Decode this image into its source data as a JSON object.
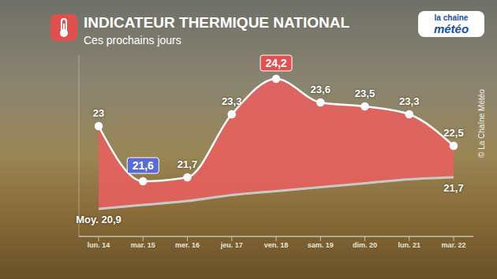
{
  "chart_data": {
    "type": "area",
    "title": "INDICATEUR THERMIQUE NATIONAL",
    "subtitle": "Ces prochains jours",
    "logo": [
      "la chaîne",
      "météo"
    ],
    "source": "© La Chaîne Météo",
    "categories": [
      "lun. 14",
      "mar. 15",
      "mer. 16",
      "jeu. 17",
      "ven. 18",
      "sam. 19",
      "dim. 20",
      "lun. 21",
      "mar. 22"
    ],
    "series": [
      {
        "values": [
          23,
          21.6,
          21.7,
          23.3,
          24.2,
          23.6,
          23.5,
          23.3,
          22.5
        ],
        "value_labels": [
          "23",
          "21,6",
          "21,7",
          "23,3",
          "24,2",
          "23,6",
          "23,5",
          "23,3",
          "22,5"
        ],
        "color": "#ffffff"
      },
      {
        "name": "Moy.",
        "values": [
          20.9,
          21.0,
          21.1,
          21.25,
          21.35,
          21.45,
          21.55,
          21.65,
          21.7
        ],
        "value_labels": [
          "Moy. 20,9",
          null,
          null,
          null,
          null,
          null,
          null,
          null,
          "21,7"
        ],
        "color": "#c8c8c8"
      }
    ],
    "ylim": [
      20.2,
      24.8
    ],
    "yticks": [],
    "grid": false,
    "data_labels": true,
    "tick_labels": "x"
  }
}
